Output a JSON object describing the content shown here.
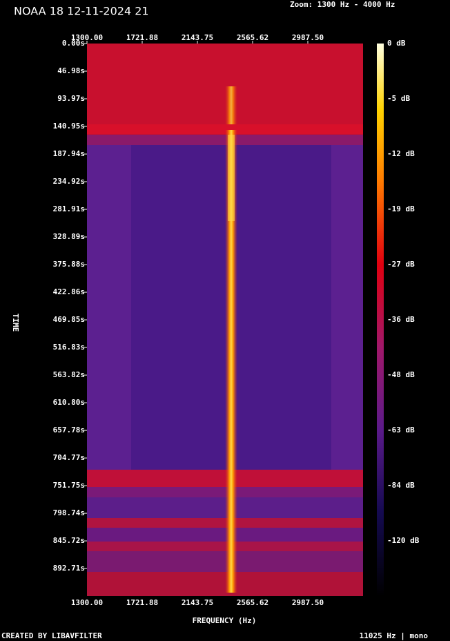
{
  "chart_data": {
    "type": "spectrogram",
    "title": "NOAA 18 12-11-2024 21",
    "subtitle": "Zoom: 1300 Hz - 4000 Hz",
    "x_label": "FREQUENCY (Hz)",
    "y_label": "TIME",
    "footer_left": "CREATED BY LIBAVFILTER",
    "footer_right": "11025 Hz | mono",
    "xlim": [
      1300,
      3409.375
    ],
    "xticks": [
      {
        "value": 1300,
        "label": "1300.00"
      },
      {
        "value": 1721.88,
        "label": "1721.88"
      },
      {
        "value": 2143.75,
        "label": "2143.75"
      },
      {
        "value": 2565.62,
        "label": "2565.62"
      },
      {
        "value": 2987.5,
        "label": "2987.50"
      }
    ],
    "ylim": [
      0,
      939.6
    ],
    "yticks": [
      {
        "value": 0,
        "label": "0.00s"
      },
      {
        "value": 46.98,
        "label": "46.98s"
      },
      {
        "value": 93.97,
        "label": "93.97s"
      },
      {
        "value": 140.95,
        "label": "140.95s"
      },
      {
        "value": 187.94,
        "label": "187.94s"
      },
      {
        "value": 234.92,
        "label": "234.92s"
      },
      {
        "value": 281.91,
        "label": "281.91s"
      },
      {
        "value": 328.89,
        "label": "328.89s"
      },
      {
        "value": 375.88,
        "label": "375.88s"
      },
      {
        "value": 422.86,
        "label": "422.86s"
      },
      {
        "value": 469.85,
        "label": "469.85s"
      },
      {
        "value": 516.83,
        "label": "516.83s"
      },
      {
        "value": 563.82,
        "label": "563.82s"
      },
      {
        "value": 610.8,
        "label": "610.80s"
      },
      {
        "value": 657.78,
        "label": "657.78s"
      },
      {
        "value": 704.77,
        "label": "704.77s"
      },
      {
        "value": 751.75,
        "label": "751.75s"
      },
      {
        "value": 798.74,
        "label": "798.74s"
      },
      {
        "value": 845.72,
        "label": "845.72s"
      },
      {
        "value": 892.71,
        "label": "892.71s"
      }
    ],
    "colorbar_ticks": [
      {
        "value": 0,
        "label": "0 dB"
      },
      {
        "value": -5,
        "label": "-5 dB"
      },
      {
        "value": -12,
        "label": "-12 dB"
      },
      {
        "value": -19,
        "label": "-19 dB"
      },
      {
        "value": -27,
        "label": "-27 dB"
      },
      {
        "value": -36,
        "label": "-36 dB"
      },
      {
        "value": -48,
        "label": "-48 dB"
      },
      {
        "value": -63,
        "label": "-63 dB"
      },
      {
        "value": -84,
        "label": "-84 dB"
      },
      {
        "value": -120,
        "label": "-120 dB"
      }
    ]
  }
}
